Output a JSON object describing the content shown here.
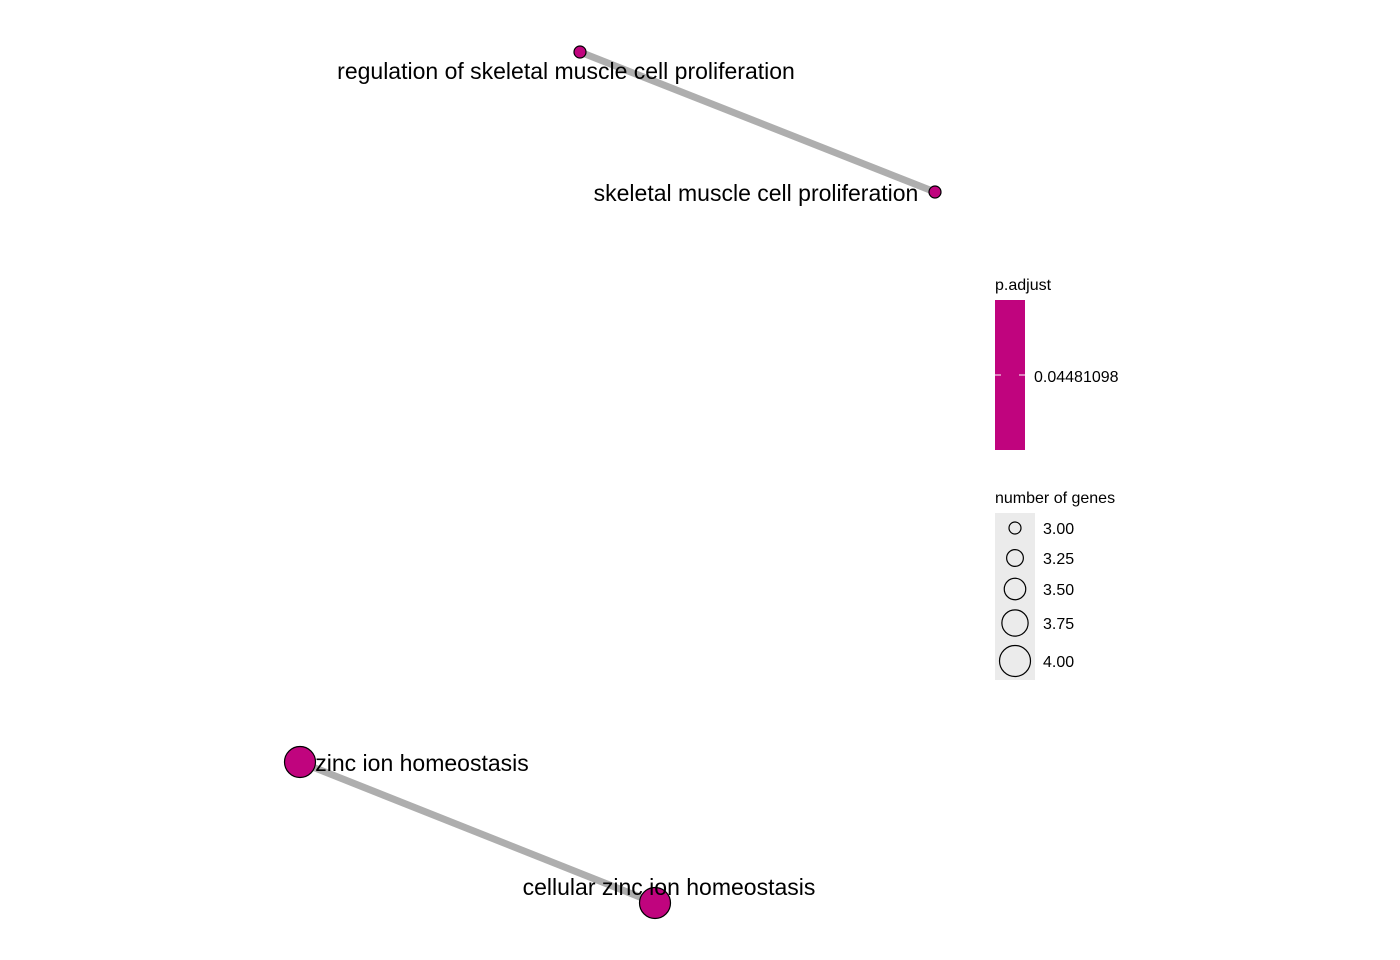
{
  "network": {
    "nodes": [
      {
        "id": "regulation of skeletal muscle cell proliferation",
        "label": "regulation of skeletal muscle cell proliferation",
        "genes": 3,
        "p_adjust": 0.04481098
      },
      {
        "id": "skeletal muscle cell proliferation",
        "label": "skeletal muscle cell proliferation",
        "genes": 3,
        "p_adjust": 0.04481098
      },
      {
        "id": "zinc ion homeostasis",
        "label": "zinc ion homeostasis",
        "genes": 4,
        "p_adjust": 0.04481098
      },
      {
        "id": "cellular zinc ion homeostasis",
        "label": "cellular zinc ion homeostasis",
        "genes": 4,
        "p_adjust": 0.04481098
      }
    ],
    "edges": [
      {
        "source": "regulation of skeletal muscle cell proliferation",
        "target": "skeletal muscle cell proliferation"
      },
      {
        "source": "zinc ion homeostasis",
        "target": "cellular zinc ion homeostasis"
      }
    ],
    "node_color": "#C0047E",
    "edge_color": "#AEAEAE"
  },
  "legend": {
    "color": {
      "title": "p.adjust",
      "tick_label": "0.04481098",
      "color": "#C0047E"
    },
    "size": {
      "title": "number of genes",
      "items": [
        {
          "label": "3.00",
          "value": 3.0
        },
        {
          "label": "3.25",
          "value": 3.25
        },
        {
          "label": "3.50",
          "value": 3.5
        },
        {
          "label": "3.75",
          "value": 3.75
        },
        {
          "label": "4.00",
          "value": 4.0
        }
      ]
    }
  }
}
